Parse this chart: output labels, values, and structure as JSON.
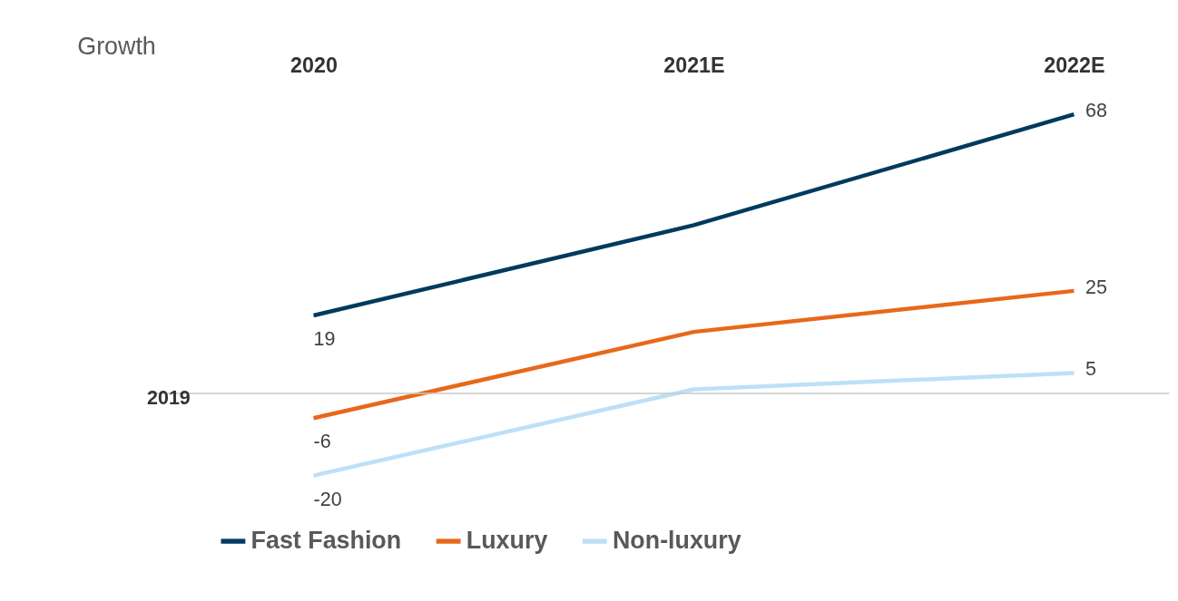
{
  "chart_data": {
    "type": "line",
    "title": "Growth",
    "categories": [
      "2020",
      "2021E",
      "2022E"
    ],
    "series": [
      {
        "name": "Fast Fashion",
        "color": "#003a5d",
        "values": [
          19,
          41,
          68
        ],
        "value_labels": [
          "19",
          null,
          "68"
        ]
      },
      {
        "name": "Luxury",
        "color": "#e8681a",
        "values": [
          -6,
          15,
          25
        ],
        "value_labels": [
          "-6",
          null,
          "25"
        ]
      },
      {
        "name": "Non-luxury",
        "color": "#bde0f7",
        "values": [
          -20,
          1,
          5
        ],
        "value_labels": [
          "-20",
          null,
          "5"
        ]
      }
    ],
    "tick_labels": "x",
    "grid": false,
    "legend": "bottom",
    "marker": "none",
    "line_style": "solid",
    "ref_lines": [
      {
        "axis": "y",
        "value": 0,
        "color": "#c8c8c8"
      }
    ],
    "annotations": [
      {
        "text": "2019",
        "y": 0
      }
    ]
  }
}
